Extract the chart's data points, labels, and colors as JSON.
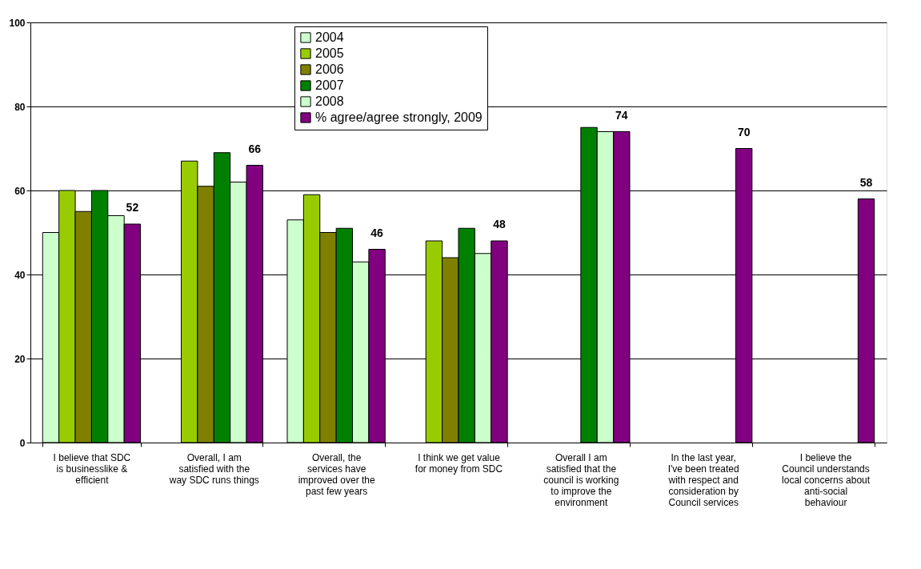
{
  "chart_data": {
    "type": "bar",
    "categories": [
      "I believe that SDC is businesslike & efficient",
      "Overall, I am satisfied with the way SDC runs things",
      "Overall, the services have improved over the past few years",
      "I think we get value for money from SDC",
      "Overall I am satisfied that the council is working to improve the environment",
      "In the last year, I've been treated with respect and consideration by Council services",
      "I believe the Council understands local concerns about anti-social behaviour"
    ],
    "series": [
      {
        "name": "2004",
        "color": "#ccffcc",
        "values": [
          50,
          null,
          53,
          null,
          null,
          null,
          null
        ]
      },
      {
        "name": "2005",
        "color": "#99cc00",
        "values": [
          60,
          67,
          59,
          48,
          null,
          null,
          null
        ]
      },
      {
        "name": "2006",
        "color": "#808000",
        "values": [
          55,
          61,
          50,
          44,
          null,
          null,
          null
        ]
      },
      {
        "name": "2007",
        "color": "#008000",
        "values": [
          60,
          69,
          51,
          51,
          75,
          null,
          null
        ]
      },
      {
        "name": "2008",
        "color": "#ccffcc",
        "values": [
          54,
          62,
          43,
          45,
          74,
          null,
          null
        ]
      },
      {
        "name": "% agree/agree strongly, 2009",
        "color": "#800080",
        "values": [
          52,
          66,
          46,
          48,
          74,
          70,
          58
        ],
        "value_labels": [
          "52",
          "66",
          "46",
          "48",
          "74",
          "70",
          "58"
        ]
      }
    ],
    "ylim": [
      0,
      100
    ],
    "yticks": [
      0,
      20,
      40,
      60,
      80,
      100
    ],
    "grid": "y",
    "legend": "top"
  }
}
